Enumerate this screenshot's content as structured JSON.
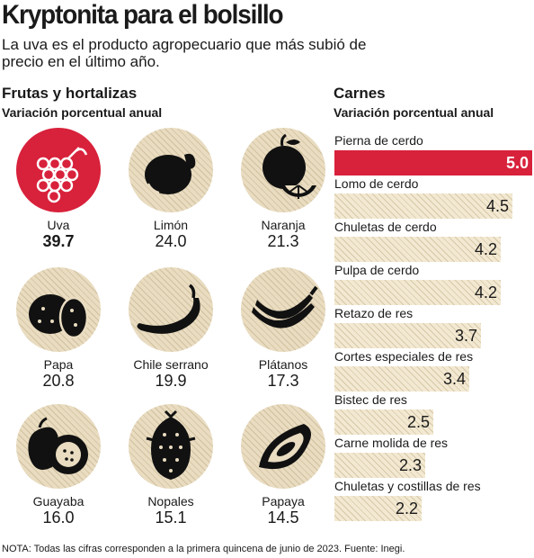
{
  "header": {
    "title": "Kryptonita para el bolsillo",
    "subtitle": "La uva es el producto agropecuario que más subió de precio en el último año."
  },
  "colors": {
    "highlight": "#d8213b",
    "hatch_light": "#f3e9d2",
    "hatch_dark": "#d6c8a8",
    "text": "#1a1a1a"
  },
  "left_section": {
    "title": "Frutas y hortalizas",
    "subtitle": "Variación porcentual anual"
  },
  "right_section": {
    "title": "Carnes",
    "subtitle": "Variación porcentual anual"
  },
  "note": "NOTA: Todas las cifras corresponden a la primera quincena de junio de 2023. Fuente: Inegi.",
  "chart_data": [
    {
      "type": "table",
      "title": "Frutas y hortalizas",
      "subtitle": "Variación porcentual anual",
      "items": [
        {
          "name": "Uva",
          "value": "39.7",
          "icon": "grapes-icon",
          "highlight": true
        },
        {
          "name": "Limón",
          "value": "24.0",
          "icon": "lemon-icon",
          "highlight": false
        },
        {
          "name": "Naranja",
          "value": "21.3",
          "icon": "orange-icon",
          "highlight": false
        },
        {
          "name": "Papa",
          "value": "20.8",
          "icon": "potato-icon",
          "highlight": false
        },
        {
          "name": "Chile serrano",
          "value": "19.9",
          "icon": "chili-pepper-icon",
          "highlight": false
        },
        {
          "name": "Plátanos",
          "value": "17.3",
          "icon": "bananas-icon",
          "highlight": false
        },
        {
          "name": "Guayaba",
          "value": "16.0",
          "icon": "guava-icon",
          "highlight": false
        },
        {
          "name": "Nopales",
          "value": "15.1",
          "icon": "cactus-pad-icon",
          "highlight": false
        },
        {
          "name": "Papaya",
          "value": "14.5",
          "icon": "papaya-icon",
          "highlight": false
        }
      ]
    },
    {
      "type": "bar",
      "orientation": "horizontal",
      "title": "Carnes",
      "subtitle": "Variación porcentual anual",
      "categories": [
        "Pierna de cerdo",
        "Lomo de cerdo",
        "Chuletas de cerdo",
        "Pulpa de cerdo",
        "Retazo de res",
        "Cortes especiales de res",
        "Bistec de res",
        "Carne molida de res",
        "Chuletas y costillas de res"
      ],
      "values": [
        5.0,
        4.5,
        4.2,
        4.2,
        3.7,
        3.4,
        2.5,
        2.3,
        2.2
      ],
      "value_labels": [
        "5.0",
        "4.5",
        "4.2",
        "4.2",
        "3.7",
        "3.4",
        "2.5",
        "2.3",
        "2.2"
      ],
      "highlight_index": 0,
      "xlim": [
        0,
        5.0
      ]
    }
  ]
}
